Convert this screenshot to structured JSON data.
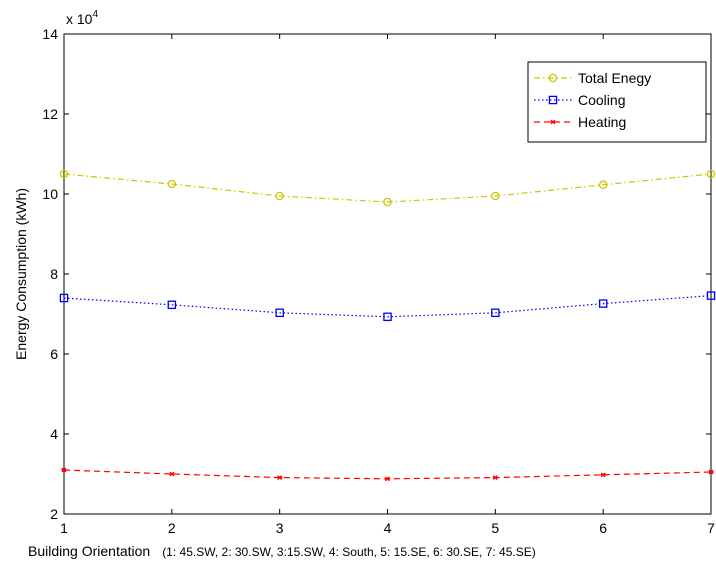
{
  "chart_data": {
    "type": "line",
    "title": "",
    "xlabel": "Building Orientation",
    "xlabel_note": "(1: 45.SW,  2: 30.SW,  3:15.SW,  4: South,  5: 15.SE,  6: 30.SE,  7: 45.SE)",
    "ylabel": "Energy Consumption (kWh)",
    "y_exponent_label": "x 10",
    "y_exponent_power": "4",
    "xlim": [
      1,
      7
    ],
    "ylim": [
      2,
      14
    ],
    "xticks": [
      "1",
      "2",
      "3",
      "4",
      "5",
      "6",
      "7"
    ],
    "yticks": [
      "2",
      "4",
      "6",
      "8",
      "10",
      "12",
      "14"
    ],
    "grid": false,
    "legend_position": "top-right",
    "x": [
      1,
      2,
      3,
      4,
      5,
      6,
      7
    ],
    "series": [
      {
        "name": "Total Enegy",
        "color": "#c8c800",
        "line_style": "dash-dot",
        "marker": "circle",
        "values": [
          105000,
          102500,
          99500,
          98000,
          99500,
          102300,
          105000
        ]
      },
      {
        "name": "Cooling",
        "color": "#0000ff",
        "line_style": "dotted",
        "marker": "square",
        "values": [
          74000,
          72300,
          70300,
          69300,
          70300,
          72600,
          74600
        ]
      },
      {
        "name": "Heating",
        "color": "#ff0000",
        "line_style": "dashed",
        "marker": "asterisk",
        "values": [
          31000,
          30000,
          29100,
          28800,
          29100,
          29800,
          30500
        ]
      }
    ]
  }
}
